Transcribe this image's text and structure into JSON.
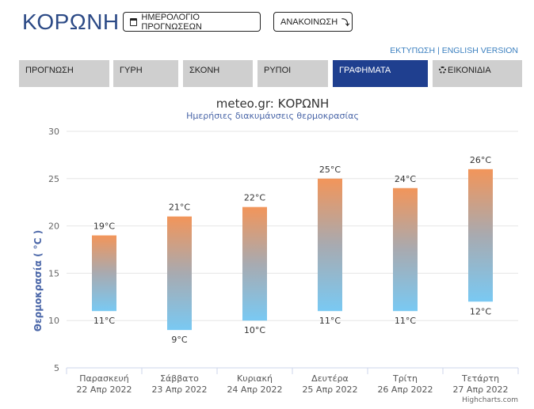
{
  "header": {
    "city": "ΚΟΡΩΝΗ",
    "calendar_button": "ΗΜΕΡΟΛΟΓΙΟ ΠΡΟΓΝΩΣΕΩΝ",
    "announce_button": "ΑΝΑΚΟΙΝΩΣΗ",
    "announce_arrow": "⤵",
    "print_link": "ΕΚΤΥΠΩΣΗ",
    "separator": "|",
    "english_link": "ENGLISH VERSION"
  },
  "tabs": [
    {
      "label": "ΠΡΟΓΝΩΣΗ",
      "active": false
    },
    {
      "label": "ΓΥΡΗ",
      "active": false
    },
    {
      "label": "ΣΚΟΝΗ",
      "active": false
    },
    {
      "label": "ΡΥΠΟΙ",
      "active": false
    },
    {
      "label": "ΓΡΑΦΗΜΑΤΑ",
      "active": true
    },
    {
      "label": "ΕΙΚΟΝΙΔΙΑ",
      "active": false,
      "icon": "gear-icon"
    }
  ],
  "chart_data": {
    "type": "bar",
    "subtype": "columnrange",
    "title": "meteo.gr: ΚΟΡΩΝΗ",
    "subtitle": "Ημερήσιες διακυμάνσεις θερμοκρασίας",
    "ylabel": "Θερμοκρασία ( °C )",
    "xlabel": "",
    "ylim": [
      5,
      30
    ],
    "yticks": [
      5,
      10,
      15,
      20,
      25,
      30
    ],
    "grid": true,
    "categories": [
      {
        "day": "Παρασκευή",
        "date": "22 Απρ 2022"
      },
      {
        "day": "Σάββατο",
        "date": "23 Απρ 2022"
      },
      {
        "day": "Κυριακή",
        "date": "24 Απρ 2022"
      },
      {
        "day": "Δευτέρα",
        "date": "25 Απρ 2022"
      },
      {
        "day": "Τρίτη",
        "date": "26 Απρ 2022"
      },
      {
        "day": "Τετάρτη",
        "date": "27 Απρ 2022"
      }
    ],
    "low": [
      11,
      9,
      10,
      11,
      11,
      12
    ],
    "high": [
      19,
      21,
      22,
      25,
      24,
      26
    ],
    "unit": "°C",
    "colors": {
      "top": "#f2955a",
      "bottom": "#79c9f3",
      "mid": "#a8aab0"
    },
    "credits": "Highcharts.com"
  }
}
